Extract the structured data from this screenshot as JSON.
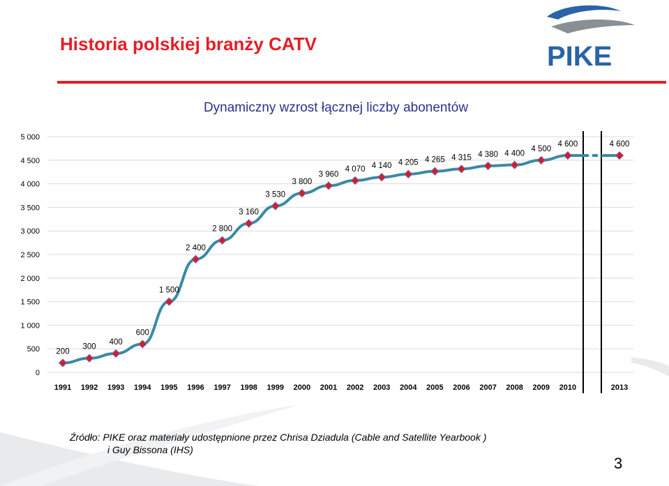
{
  "header": {
    "title": "Historia polskiej branży CATV",
    "logo_text": "PIKE"
  },
  "chart_title": "Dynamiczny wzrost łącznej liczby abonentów",
  "chart_data": {
    "type": "line",
    "x": [
      "1991",
      "1992",
      "1993",
      "1994",
      "1995",
      "1996",
      "1997",
      "1998",
      "1999",
      "2000",
      "2001",
      "2002",
      "2003",
      "2004",
      "2005",
      "2006",
      "2007",
      "2008",
      "2009",
      "2010",
      "2013"
    ],
    "values": [
      200,
      300,
      400,
      600,
      1500,
      2400,
      2800,
      3160,
      3530,
      3800,
      3960,
      4070,
      4140,
      4205,
      4265,
      4315,
      4380,
      4400,
      4500,
      4600,
      4600
    ],
    "data_labels": [
      "200",
      "300",
      "400",
      "600",
      "1 500",
      "2 400",
      "2 800",
      "3 160",
      "3 530",
      "3 800",
      "3 960",
      "4 070",
      "4 140",
      "4 205",
      "4 265",
      "4 315",
      "4 380",
      "4 400",
      "4 500",
      "4 600",
      "4 600"
    ],
    "yticks": [
      "0",
      "500",
      "1 000",
      "1 500",
      "2 000",
      "2 500",
      "3 000",
      "3 500",
      "4 000",
      "4 500",
      "5 000"
    ],
    "ylim": [
      0,
      5000
    ],
    "grid": true,
    "axis_break_between": [
      "2010",
      "2013"
    ],
    "line_color": "#3a8aa6",
    "marker_color": "#d11f2a"
  },
  "footer": {
    "source_line1": "Źródło:  PIKE  oraz materiały udostępnione przez Chrisa Dziadula (Cable and Satellite Yearbook )",
    "source_line2": "i Guy Bissona (IHS)",
    "page_number": "3"
  },
  "colors": {
    "title_red": "#e41e26",
    "subtitle_blue": "#2e2e8f",
    "logo_blue": "#2a63a8",
    "logo_gray": "#8a8f96"
  }
}
